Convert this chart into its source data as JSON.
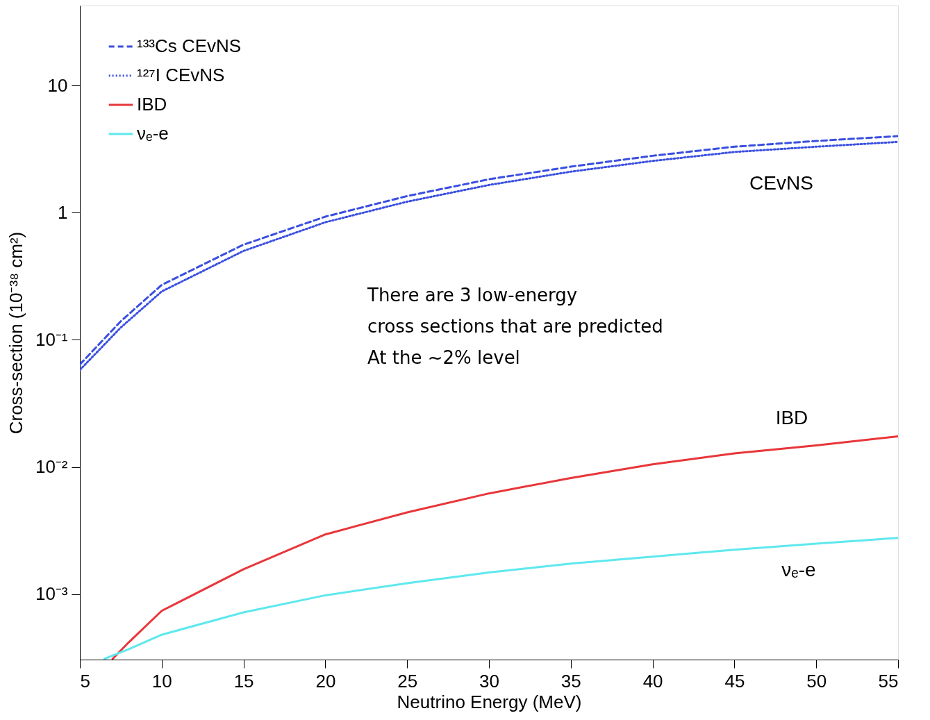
{
  "chart_data": {
    "type": "line",
    "xlabel": "Neutrino Energy (MeV)",
    "ylabel": "Cross-section (10⁻³⁸ cm²)",
    "log": "y",
    "grid": false,
    "legend": "top left",
    "xlim": [
      5,
      55
    ],
    "xticks": [
      5,
      10,
      15,
      20,
      25,
      30,
      35,
      40,
      45,
      50,
      55
    ],
    "ylim": [
      0.000306,
      42.5
    ],
    "yticks": [
      {
        "value": 0.001,
        "label": "10⁻³"
      },
      {
        "value": 0.01,
        "label": "10⁻²"
      },
      {
        "value": 0.1,
        "label": "10⁻¹"
      },
      1,
      10
    ],
    "series": [
      {
        "name": "¹³³Cs CEvNS",
        "color": "#3a4fe0",
        "line_style": "dashed",
        "x": [
          5,
          7.5,
          10,
          15,
          20,
          25,
          30,
          35,
          40,
          45,
          50,
          55
        ],
        "values": [
          0.064,
          0.14,
          0.27,
          0.56,
          0.93,
          1.35,
          1.83,
          2.3,
          2.8,
          3.3,
          3.66,
          4.0
        ]
      },
      {
        "name": "¹²⁷I CEvNS",
        "color": "#3a4fe0",
        "line_style": "dotted",
        "x": [
          5,
          7.5,
          10,
          15,
          20,
          25,
          30,
          35,
          40,
          45,
          50,
          55
        ],
        "values": [
          0.058,
          0.125,
          0.24,
          0.5,
          0.84,
          1.22,
          1.65,
          2.1,
          2.55,
          3.0,
          3.3,
          3.6
        ]
      },
      {
        "name": "IBD",
        "color": "#e8363a",
        "line_style": "solid",
        "x": [
          7,
          8,
          10,
          15,
          20,
          25,
          30,
          35,
          40,
          45,
          50,
          55
        ],
        "values": [
          0.00031,
          0.00042,
          0.00074,
          0.00157,
          0.00295,
          0.0044,
          0.0062,
          0.0082,
          0.0105,
          0.0128,
          0.0148,
          0.0174
        ]
      },
      {
        "name": "νₑ-e",
        "color": "#5ee8ee",
        "line_style": "solid",
        "x": [
          6.5,
          8,
          10,
          15,
          20,
          25,
          30,
          35,
          40,
          45,
          50,
          55
        ],
        "values": [
          0.00031,
          0.00037,
          0.00048,
          0.00072,
          0.00098,
          0.00122,
          0.00148,
          0.00174,
          0.00197,
          0.00224,
          0.0025,
          0.00277
        ]
      }
    ],
    "annotations": [
      "CEvNS",
      "IBD",
      "νₑ-e",
      "There are 3 low-energy",
      "cross sections that are predicted",
      "At the ~2% level"
    ]
  }
}
